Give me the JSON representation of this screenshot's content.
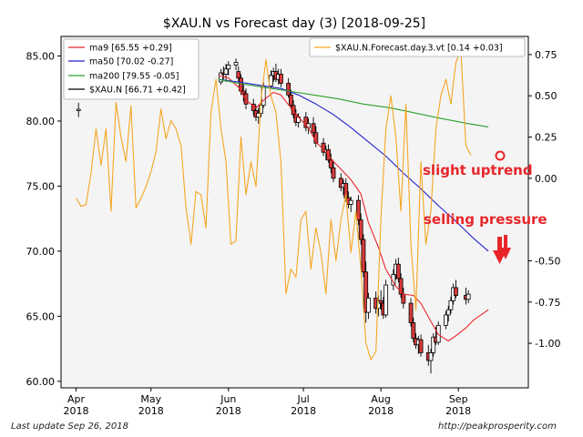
{
  "chart_data": {
    "type": "candlestick",
    "title": "$XAU.N vs Forecast day (3)  [2018-09-25]",
    "x_ticks": [
      {
        "date": "2018-04-01",
        "label": "Apr\n2018"
      },
      {
        "date": "2018-05-01",
        "label": "May\n2018"
      },
      {
        "date": "2018-06-01",
        "label": "Jun\n2018"
      },
      {
        "date": "2018-07-01",
        "label": "Jul\n2018"
      },
      {
        "date": "2018-08-01",
        "label": "Aug\n2018"
      },
      {
        "date": "2018-09-01",
        "label": "Sep\n2018"
      }
    ],
    "xlim": [
      "2018-03-26",
      "2018-09-29"
    ],
    "y_left": {
      "lim": [
        59.5,
        86.5
      ],
      "ticks": [
        "85.00",
        "80.00",
        "75.00",
        "70.00",
        "65.00",
        "60.00"
      ],
      "tick_values": [
        85,
        80,
        75,
        70,
        65,
        60
      ]
    },
    "y_right": {
      "lim": [
        -1.27,
        0.86
      ],
      "ticks": [
        "0.75",
        "0.50",
        "0.25",
        "0.00",
        "-0.50",
        "-0.75",
        "-1.00"
      ],
      "tick_values": [
        0.75,
        0.5,
        0.25,
        0.0,
        -0.5,
        -0.75,
        -1.0
      ]
    },
    "legend_left": {
      "placement": "top-left",
      "entries": [
        {
          "label": "ma9 [65.55 +0.29]",
          "color": "#e8262a"
        },
        {
          "label": "ma50 [70.02 -0.27]",
          "color": "#2222cc"
        },
        {
          "label": "ma200 [79.55 -0.05]",
          "color": "#2aa02a"
        },
        {
          "label": "$XAU.N [66.71 +0.42]",
          "color": "#000000"
        }
      ]
    },
    "legend_right": {
      "placement": "top-right",
      "entries": [
        {
          "label": "$XAU.N.Forecast.day.3.vt [0.14 +0.03]",
          "color": "#f5a623"
        }
      ]
    },
    "annotations": [
      {
        "text": "slight uptrend",
        "color": "#e8262a"
      },
      {
        "text": "selling pressure",
        "color": "#e8262a"
      }
    ],
    "series": [
      {
        "name": "ma9",
        "color": "#e8262a",
        "points": [
          [
            "2018-05-28",
            83.5
          ],
          [
            "2018-06-01",
            83.3
          ],
          [
            "2018-06-05",
            82.6
          ],
          [
            "2018-06-08",
            81.6
          ],
          [
            "2018-06-12",
            81.0
          ],
          [
            "2018-06-15",
            81.6
          ],
          [
            "2018-06-19",
            82.2
          ],
          [
            "2018-06-22",
            82.0
          ],
          [
            "2018-06-26",
            81.0
          ],
          [
            "2018-06-29",
            80.3
          ],
          [
            "2018-07-03",
            79.5
          ],
          [
            "2018-07-06",
            78.4
          ],
          [
            "2018-07-10",
            77.6
          ],
          [
            "2018-07-13",
            76.9
          ],
          [
            "2018-07-17",
            76.1
          ],
          [
            "2018-07-20",
            75.5
          ],
          [
            "2018-07-24",
            74.4
          ],
          [
            "2018-07-27",
            72.2
          ],
          [
            "2018-07-31",
            70.3
          ],
          [
            "2018-08-03",
            68.6
          ],
          [
            "2018-08-07",
            67.3
          ],
          [
            "2018-08-10",
            66.7
          ],
          [
            "2018-08-14",
            66.6
          ],
          [
            "2018-08-17",
            66.0
          ],
          [
            "2018-08-21",
            64.6
          ],
          [
            "2018-08-24",
            63.6
          ],
          [
            "2018-08-28",
            63.1
          ],
          [
            "2018-08-31",
            63.5
          ],
          [
            "2018-09-04",
            64.1
          ],
          [
            "2018-09-07",
            64.7
          ],
          [
            "2018-09-10",
            65.1
          ],
          [
            "2018-09-13",
            65.5
          ]
        ]
      },
      {
        "name": "ma50",
        "color": "#2222cc",
        "points": [
          [
            "2018-05-28",
            83.2
          ],
          [
            "2018-06-05",
            83.0
          ],
          [
            "2018-06-15",
            82.7
          ],
          [
            "2018-06-22",
            82.5
          ],
          [
            "2018-06-29",
            82.0
          ],
          [
            "2018-07-06",
            81.3
          ],
          [
            "2018-07-13",
            80.5
          ],
          [
            "2018-07-20",
            79.5
          ],
          [
            "2018-07-27",
            78.4
          ],
          [
            "2018-08-03",
            77.3
          ],
          [
            "2018-08-10",
            76.0
          ],
          [
            "2018-08-17",
            74.8
          ],
          [
            "2018-08-24",
            73.5
          ],
          [
            "2018-08-31",
            72.3
          ],
          [
            "2018-09-07",
            71.0
          ],
          [
            "2018-09-13",
            70.0
          ]
        ]
      },
      {
        "name": "ma200",
        "color": "#2aa02a",
        "points": [
          [
            "2018-05-28",
            83.2
          ],
          [
            "2018-06-05",
            82.9
          ],
          [
            "2018-06-15",
            82.6
          ],
          [
            "2018-06-25",
            82.3
          ],
          [
            "2018-07-05",
            82.0
          ],
          [
            "2018-07-15",
            81.7
          ],
          [
            "2018-07-25",
            81.3
          ],
          [
            "2018-08-05",
            81.0
          ],
          [
            "2018-08-15",
            80.6
          ],
          [
            "2018-08-25",
            80.2
          ],
          [
            "2018-09-05",
            79.8
          ],
          [
            "2018-09-13",
            79.55
          ]
        ]
      },
      {
        "name": "$XAU.N.Forecast.day.3.vt",
        "color": "#f5a623",
        "axis": "right",
        "points": [
          [
            "2018-04-01",
            -0.12
          ],
          [
            "2018-04-03",
            -0.17
          ],
          [
            "2018-04-05",
            -0.16
          ],
          [
            "2018-04-07",
            0.03
          ],
          [
            "2018-04-09",
            0.3
          ],
          [
            "2018-04-11",
            0.08
          ],
          [
            "2018-04-13",
            0.3
          ],
          [
            "2018-04-15",
            -0.2
          ],
          [
            "2018-04-17",
            0.46
          ],
          [
            "2018-04-19",
            0.25
          ],
          [
            "2018-04-21",
            0.1
          ],
          [
            "2018-04-23",
            0.44
          ],
          [
            "2018-04-25",
            -0.18
          ],
          [
            "2018-04-27",
            -0.12
          ],
          [
            "2018-04-29",
            -0.05
          ],
          [
            "2018-05-01",
            0.04
          ],
          [
            "2018-05-03",
            0.16
          ],
          [
            "2018-05-05",
            0.42
          ],
          [
            "2018-05-07",
            0.24
          ],
          [
            "2018-05-09",
            0.35
          ],
          [
            "2018-05-11",
            0.3
          ],
          [
            "2018-05-13",
            0.2
          ],
          [
            "2018-05-15",
            -0.18
          ],
          [
            "2018-05-17",
            -0.4
          ],
          [
            "2018-05-19",
            -0.08
          ],
          [
            "2018-05-21",
            -0.1
          ],
          [
            "2018-05-23",
            -0.3
          ],
          [
            "2018-05-25",
            0.4
          ],
          [
            "2018-05-27",
            0.6
          ],
          [
            "2018-05-29",
            0.3
          ],
          [
            "2018-05-31",
            0.1
          ],
          [
            "2018-06-02",
            -0.4
          ],
          [
            "2018-06-04",
            -0.38
          ],
          [
            "2018-06-06",
            0.25
          ],
          [
            "2018-06-08",
            -0.1
          ],
          [
            "2018-06-10",
            0.1
          ],
          [
            "2018-06-12",
            -0.05
          ],
          [
            "2018-06-14",
            0.48
          ],
          [
            "2018-06-16",
            0.72
          ],
          [
            "2018-06-18",
            0.5
          ],
          [
            "2018-06-20",
            0.4
          ],
          [
            "2018-06-22",
            0.1
          ],
          [
            "2018-06-24",
            -0.7
          ],
          [
            "2018-06-26",
            -0.55
          ],
          [
            "2018-06-28",
            -0.6
          ],
          [
            "2018-06-30",
            -0.25
          ],
          [
            "2018-07-02",
            -0.2
          ],
          [
            "2018-07-04",
            -0.55
          ],
          [
            "2018-07-06",
            -0.3
          ],
          [
            "2018-07-08",
            -0.45
          ],
          [
            "2018-07-10",
            -0.7
          ],
          [
            "2018-07-12",
            -0.25
          ],
          [
            "2018-07-14",
            -0.5
          ],
          [
            "2018-07-16",
            -0.25
          ],
          [
            "2018-07-18",
            -0.1
          ],
          [
            "2018-07-20",
            -0.45
          ],
          [
            "2018-07-22",
            -0.2
          ],
          [
            "2018-07-24",
            -0.55
          ],
          [
            "2018-07-26",
            -1.0
          ],
          [
            "2018-07-28",
            -1.1
          ],
          [
            "2018-07-30",
            -1.05
          ],
          [
            "2018-08-01",
            -0.25
          ],
          [
            "2018-08-03",
            0.3
          ],
          [
            "2018-08-05",
            0.5
          ],
          [
            "2018-08-07",
            0.25
          ],
          [
            "2018-08-09",
            -0.2
          ],
          [
            "2018-08-11",
            0.45
          ],
          [
            "2018-08-13",
            -0.4
          ],
          [
            "2018-08-15",
            -0.8
          ],
          [
            "2018-08-17",
            0.1
          ],
          [
            "2018-08-19",
            -0.4
          ],
          [
            "2018-08-21",
            -0.2
          ],
          [
            "2018-08-23",
            0.3
          ],
          [
            "2018-08-25",
            0.5
          ],
          [
            "2018-08-27",
            0.6
          ],
          [
            "2018-08-29",
            0.45
          ],
          [
            "2018-08-31",
            0.7
          ],
          [
            "2018-09-02",
            0.78
          ],
          [
            "2018-09-04",
            0.2
          ],
          [
            "2018-09-06",
            0.14
          ]
        ]
      }
    ],
    "candles": [
      [
        "2018-04-02",
        80.8,
        81.4,
        80.3,
        80.9
      ],
      [
        "2018-05-29",
        83.0,
        84.0,
        82.8,
        83.7
      ],
      [
        "2018-05-30",
        83.7,
        84.2,
        83.2,
        83.6
      ],
      [
        "2018-05-31",
        83.6,
        84.4,
        83.0,
        84.0
      ],
      [
        "2018-06-01",
        84.0,
        84.6,
        83.5,
        84.3
      ],
      [
        "2018-06-04",
        84.3,
        84.8,
        83.9,
        84.5
      ],
      [
        "2018-06-05",
        83.8,
        84.2,
        83.0,
        83.3
      ],
      [
        "2018-06-06",
        83.3,
        83.6,
        82.0,
        82.3
      ],
      [
        "2018-06-07",
        82.3,
        82.8,
        81.5,
        82.1
      ],
      [
        "2018-06-08",
        82.1,
        82.5,
        80.9,
        81.3
      ],
      [
        "2018-06-11",
        81.3,
        81.7,
        80.4,
        80.8
      ],
      [
        "2018-06-12",
        80.8,
        81.2,
        80.0,
        80.3
      ],
      [
        "2018-06-13",
        80.3,
        81.0,
        79.8,
        80.6
      ],
      [
        "2018-06-14",
        80.6,
        81.5,
        80.3,
        81.2
      ],
      [
        "2018-06-15",
        81.2,
        83.0,
        81.0,
        82.7
      ],
      [
        "2018-06-18",
        82.7,
        83.9,
        82.5,
        83.5
      ],
      [
        "2018-06-19",
        83.5,
        84.1,
        83.0,
        83.8
      ],
      [
        "2018-06-20",
        83.8,
        84.4,
        83.0,
        83.2
      ],
      [
        "2018-06-21",
        83.2,
        84.0,
        82.8,
        83.6
      ],
      [
        "2018-06-22",
        83.6,
        84.0,
        82.6,
        82.9
      ],
      [
        "2018-06-25",
        82.9,
        83.3,
        81.8,
        82.0
      ],
      [
        "2018-06-26",
        82.0,
        82.4,
        80.9,
        81.2
      ],
      [
        "2018-06-27",
        81.2,
        81.6,
        80.2,
        80.5
      ],
      [
        "2018-06-28",
        80.5,
        80.9,
        79.6,
        79.9
      ],
      [
        "2018-06-29",
        79.9,
        80.6,
        79.5,
        80.3
      ],
      [
        "2018-07-02",
        80.3,
        80.7,
        79.2,
        79.5
      ],
      [
        "2018-07-03",
        79.5,
        80.2,
        79.0,
        79.8
      ],
      [
        "2018-07-05",
        79.8,
        80.3,
        78.8,
        79.1
      ],
      [
        "2018-07-06",
        79.1,
        79.6,
        78.0,
        78.3
      ],
      [
        "2018-07-09",
        78.3,
        78.7,
        77.3,
        77.6
      ],
      [
        "2018-07-10",
        77.6,
        78.1,
        77.0,
        77.8
      ],
      [
        "2018-07-11",
        77.8,
        78.2,
        76.8,
        77.0
      ],
      [
        "2018-07-12",
        77.0,
        77.5,
        76.0,
        76.4
      ],
      [
        "2018-07-13",
        76.4,
        76.9,
        75.3,
        75.6
      ],
      [
        "2018-07-16",
        75.6,
        76.0,
        74.6,
        74.9
      ],
      [
        "2018-07-17",
        74.9,
        75.5,
        74.3,
        75.2
      ],
      [
        "2018-07-18",
        75.2,
        75.6,
        73.8,
        74.1
      ],
      [
        "2018-07-19",
        74.1,
        74.6,
        73.3,
        73.6
      ],
      [
        "2018-07-20",
        73.6,
        74.2,
        73.0,
        73.9
      ],
      [
        "2018-07-23",
        73.9,
        74.3,
        72.0,
        72.4
      ],
      [
        "2018-07-24",
        72.4,
        72.9,
        70.5,
        70.9
      ],
      [
        "2018-07-25",
        70.9,
        71.3,
        68.0,
        68.4
      ],
      [
        "2018-07-26",
        68.4,
        69.2,
        64.5,
        65.3
      ],
      [
        "2018-07-27",
        65.3,
        66.8,
        64.8,
        66.4
      ],
      [
        "2018-07-30",
        66.4,
        66.9,
        65.2,
        65.6
      ],
      [
        "2018-07-31",
        65.6,
        66.6,
        65.0,
        66.2
      ],
      [
        "2018-08-01",
        66.2,
        67.0,
        65.5,
        66.0
      ],
      [
        "2018-08-02",
        66.0,
        66.5,
        64.8,
        65.1
      ],
      [
        "2018-08-03",
        65.1,
        67.8,
        64.9,
        67.4
      ],
      [
        "2018-08-06",
        67.4,
        68.6,
        67.0,
        68.2
      ],
      [
        "2018-08-07",
        68.2,
        69.4,
        67.8,
        69.0
      ],
      [
        "2018-08-08",
        69.0,
        69.5,
        67.6,
        67.9
      ],
      [
        "2018-08-09",
        67.9,
        68.3,
        66.4,
        66.7
      ],
      [
        "2018-08-10",
        66.7,
        67.2,
        65.6,
        66.0
      ],
      [
        "2018-08-13",
        66.0,
        66.4,
        64.2,
        64.5
      ],
      [
        "2018-08-14",
        64.5,
        64.9,
        63.0,
        63.3
      ],
      [
        "2018-08-15",
        63.3,
        63.7,
        62.5,
        62.8
      ],
      [
        "2018-08-16",
        62.8,
        63.5,
        62.1,
        63.2
      ],
      [
        "2018-08-17",
        63.2,
        63.6,
        61.9,
        62.2
      ],
      [
        "2018-08-20",
        62.2,
        62.8,
        61.2,
        61.6
      ],
      [
        "2018-08-21",
        61.6,
        62.5,
        60.6,
        62.2
      ],
      [
        "2018-08-22",
        62.2,
        63.7,
        61.9,
        63.4
      ],
      [
        "2018-08-23",
        63.4,
        64.2,
        62.8,
        63.0
      ],
      [
        "2018-08-24",
        63.0,
        64.6,
        62.8,
        64.3
      ],
      [
        "2018-08-27",
        64.3,
        65.4,
        64.0,
        65.1
      ],
      [
        "2018-08-28",
        65.1,
        65.8,
        64.6,
        65.5
      ],
      [
        "2018-08-29",
        65.5,
        66.5,
        65.2,
        66.2
      ],
      [
        "2018-08-30",
        66.2,
        67.5,
        65.9,
        67.2
      ],
      [
        "2018-08-31",
        67.2,
        67.8,
        66.4,
        66.6
      ],
      [
        "2018-09-04",
        66.6,
        67.2,
        65.9,
        66.3
      ],
      [
        "2018-09-05",
        66.3,
        67.0,
        66.0,
        66.7
      ]
    ]
  },
  "footer": {
    "last_update": "Last update Sep 26, 2018",
    "source": "http://peakprosperity.com"
  }
}
